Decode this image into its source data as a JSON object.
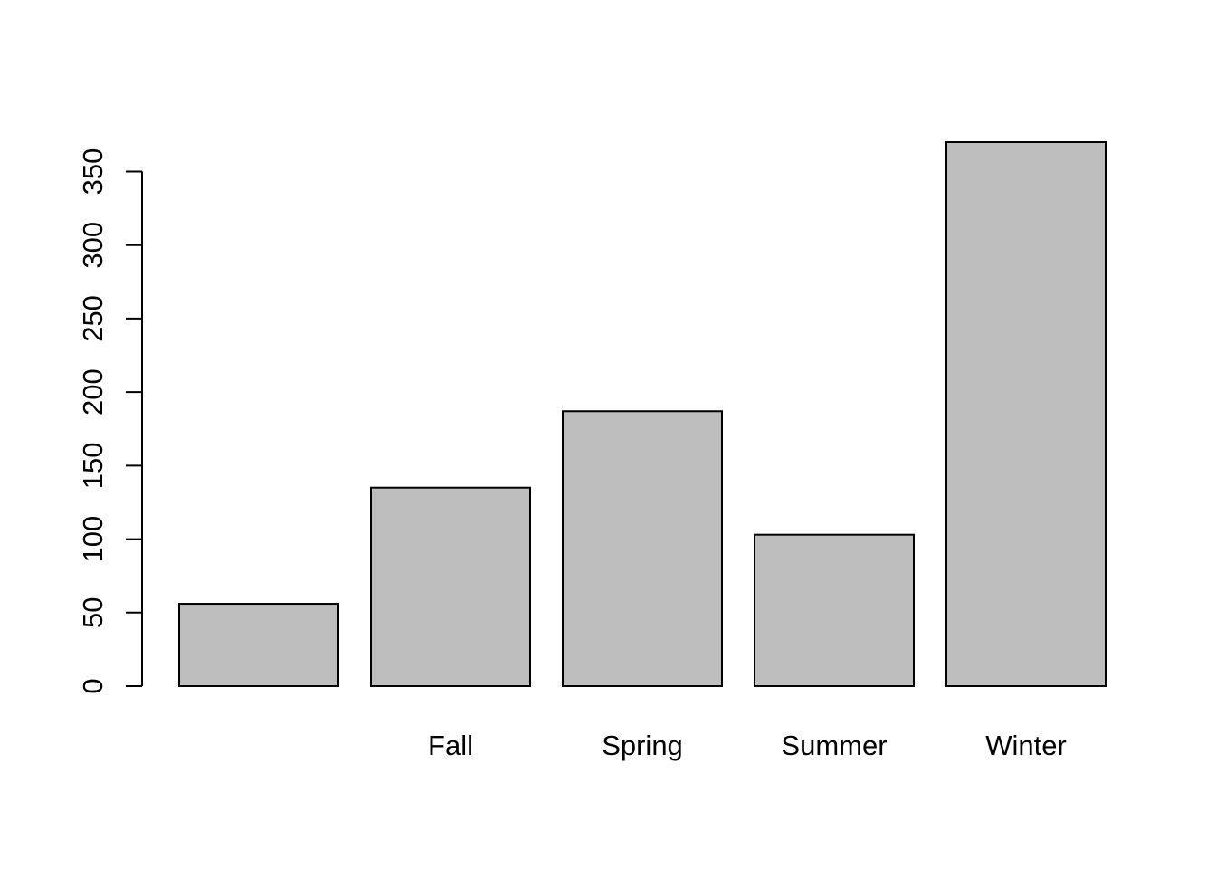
{
  "chart_data": {
    "type": "bar",
    "categories": [
      "",
      "Fall",
      "Spring",
      "Summer",
      "Winter"
    ],
    "values": [
      56,
      135,
      187,
      103,
      370
    ],
    "title": "",
    "xlabel": "",
    "ylabel": "",
    "ylim": [
      0,
      370
    ],
    "y_ticks": [
      0,
      50,
      100,
      150,
      200,
      250,
      300,
      350
    ],
    "y_tick_labels": [
      "0",
      "50",
      "100",
      "150",
      "200",
      "250",
      "300",
      "350"
    ],
    "grid": false,
    "legend": "none",
    "colors": {
      "bar_fill": "#bebebe",
      "bar_stroke": "#000000",
      "axis": "#000000",
      "background": "#ffffff"
    }
  }
}
